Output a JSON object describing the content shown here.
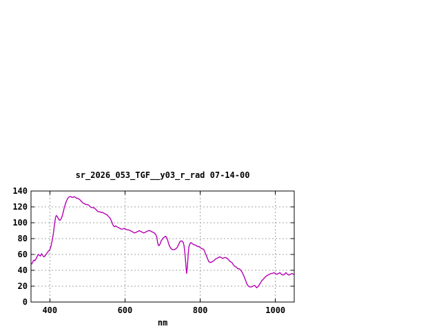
{
  "window": {
    "background_color": "#ffffff"
  },
  "chart_data": {
    "type": "line",
    "title": "sr_2026_053_TGF__y03_r_rad 07-14-00",
    "xlabel": "nm",
    "ylabel": "",
    "xlim": [
      350,
      1050
    ],
    "ylim": [
      0,
      140
    ],
    "xticks": [
      400,
      600,
      800,
      1000
    ],
    "yticks": [
      0,
      20,
      40,
      60,
      80,
      100,
      120,
      140
    ],
    "grid": true,
    "legend_position": "none",
    "colors": {
      "line": "#b400b4",
      "grid": "#a0a0a0",
      "axis": "#000000",
      "text": "#000000",
      "background": "#ffffff"
    },
    "series": [
      {
        "name": "sr_2026_053_TGF__y03_r_rad",
        "x": [
          352,
          354,
          356,
          358,
          360,
          363,
          366,
          369,
          372,
          375,
          378,
          381,
          384,
          387,
          390,
          393,
          396,
          400,
          403,
          406,
          409,
          411,
          413,
          415,
          417,
          420,
          423,
          426,
          429,
          432,
          435,
          438,
          441,
          444,
          447,
          450,
          453,
          456,
          459,
          462,
          465,
          468,
          471,
          474,
          477,
          480,
          484,
          488,
          492,
          496,
          500,
          504,
          508,
          512,
          516,
          520,
          524,
          528,
          532,
          536,
          540,
          544,
          548,
          552,
          556,
          560,
          564,
          568,
          572,
          575,
          578,
          582,
          586,
          590,
          594,
          598,
          602,
          606,
          610,
          614,
          618,
          622,
          626,
          630,
          634,
          638,
          642,
          646,
          650,
          654,
          658,
          662,
          666,
          670,
          674,
          678,
          682,
          685,
          687,
          690,
          693,
          696,
          699,
          702,
          705,
          708,
          711,
          714,
          717,
          720,
          723,
          727,
          731,
          735,
          739,
          743,
          746,
          749,
          752,
          755,
          757,
          759,
          761,
          763,
          764,
          766,
          768,
          770,
          772,
          775,
          778,
          781,
          784,
          787,
          790,
          793,
          796,
          799,
          802,
          805,
          808,
          811,
          814,
          817,
          820,
          823,
          826,
          829,
          832,
          836,
          840,
          844,
          848,
          852,
          856,
          860,
          864,
          868,
          872,
          876,
          880,
          884,
          888,
          892,
          896,
          900,
          904,
          908,
          912,
          916,
          920,
          924,
          928,
          932,
          936,
          940,
          944,
          947,
          950,
          953,
          956,
          960,
          964,
          968,
          972,
          976,
          980,
          984,
          988,
          992,
          996,
          1000,
          1004,
          1008,
          1012,
          1016,
          1020,
          1024,
          1028,
          1032,
          1036,
          1040,
          1044,
          1048
        ],
        "y": [
          48,
          50,
          52,
          53,
          52,
          54,
          57,
          60,
          59,
          58,
          61,
          59,
          57,
          58,
          60,
          62,
          64,
          66,
          70,
          77,
          85,
          92,
          100,
          106,
          109,
          108,
          105,
          103,
          104,
          107,
          112,
          118,
          123,
          127,
          130,
          132,
          133,
          133,
          132,
          132,
          133,
          132,
          131,
          131,
          130,
          129,
          127,
          125,
          124,
          123,
          123,
          122,
          120,
          119,
          119,
          118,
          116,
          114,
          114,
          113,
          113,
          112,
          111,
          110,
          108,
          106,
          102,
          97,
          95,
          96,
          95,
          94,
          93,
          92,
          92,
          93,
          92,
          91,
          91,
          90,
          89,
          88,
          87,
          88,
          89,
          90,
          89,
          88,
          87,
          88,
          89,
          90,
          90,
          89,
          88,
          87,
          85,
          81,
          74,
          71,
          73,
          77,
          79,
          81,
          82,
          83,
          81,
          77,
          72,
          69,
          67,
          66,
          66,
          67,
          69,
          73,
          76,
          77,
          77,
          75,
          71,
          63,
          52,
          40,
          36,
          45,
          60,
          70,
          73,
          75,
          74,
          73,
          72,
          72,
          71,
          70,
          70,
          69,
          68,
          67,
          67,
          65,
          61,
          58,
          54,
          51,
          50,
          50,
          51,
          52,
          54,
          55,
          56,
          57,
          56,
          55,
          56,
          56,
          55,
          53,
          51,
          50,
          47,
          45,
          44,
          42,
          42,
          40,
          37,
          33,
          28,
          23,
          20,
          19,
          19,
          20,
          21,
          20,
          18,
          19,
          21,
          24,
          27,
          29,
          31,
          33,
          34,
          35,
          36,
          36,
          37,
          36,
          35,
          36,
          37,
          35,
          34,
          35,
          37,
          35,
          34,
          35,
          36,
          35
        ]
      }
    ]
  }
}
